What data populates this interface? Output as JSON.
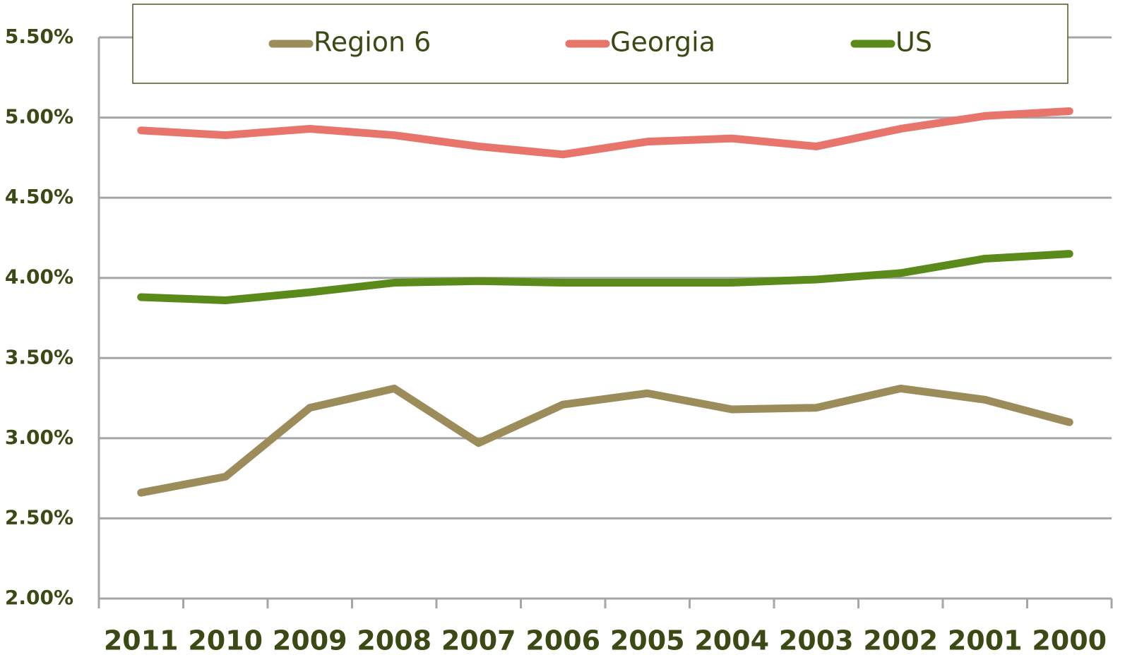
{
  "chart_data": {
    "type": "line",
    "categories": [
      "2011",
      "2010",
      "2009",
      "2008",
      "2007",
      "2006",
      "2005",
      "2004",
      "2003",
      "2002",
      "2001",
      "2000"
    ],
    "series": [
      {
        "name": "Region 6",
        "color": "#9b8c5a",
        "values": [
          2.66,
          2.76,
          3.19,
          3.31,
          2.97,
          3.21,
          3.28,
          3.18,
          3.19,
          3.31,
          3.24,
          3.1
        ]
      },
      {
        "name": "Georgia",
        "color": "#e8756c",
        "values": [
          4.92,
          4.89,
          4.93,
          4.89,
          4.82,
          4.77,
          4.85,
          4.87,
          4.82,
          4.93,
          5.01,
          5.04
        ]
      },
      {
        "name": "US",
        "color": "#5a8a1a",
        "values": [
          3.88,
          3.86,
          3.91,
          3.97,
          3.98,
          3.97,
          3.97,
          3.97,
          3.99,
          4.03,
          4.12,
          4.15
        ]
      }
    ],
    "ylim": [
      2.0,
      5.5
    ],
    "yticks": [
      {
        "value": 2.0,
        "label": "2.00%"
      },
      {
        "value": 2.5,
        "label": "2.50%"
      },
      {
        "value": 3.0,
        "label": "3.00%"
      },
      {
        "value": 3.5,
        "label": "3.50%"
      },
      {
        "value": 4.0,
        "label": "4.00%"
      },
      {
        "value": 4.5,
        "label": "4.50%"
      },
      {
        "value": 5.0,
        "label": "5.00%"
      },
      {
        "value": 5.5,
        "label": "5.50%"
      }
    ],
    "grid": true,
    "legend": "top"
  }
}
